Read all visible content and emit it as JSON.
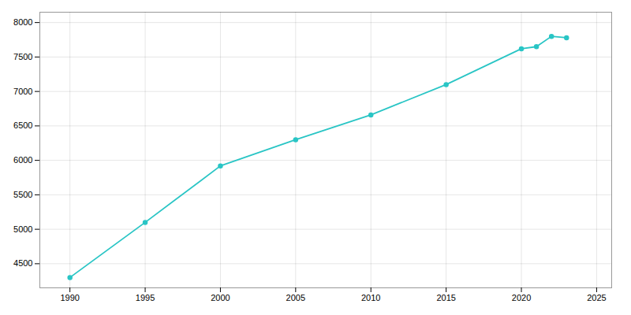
{
  "chart_data": {
    "type": "line",
    "x": [
      1990,
      1995,
      2000,
      2005,
      2010,
      2015,
      2020,
      2021,
      2022,
      2023
    ],
    "values": [
      4300,
      5100,
      5920,
      6300,
      6660,
      7100,
      7620,
      7650,
      7800,
      7780
    ],
    "color": "#29c5c5",
    "marker": "circle",
    "xlim": [
      1988,
      2026
    ],
    "ylim": [
      4150,
      8150
    ],
    "xticks": [
      1990,
      1995,
      2000,
      2005,
      2010,
      2015,
      2020,
      2025
    ],
    "yticks": [
      4500,
      5000,
      5500,
      6000,
      6500,
      7000,
      7500,
      8000
    ],
    "grid": true
  }
}
